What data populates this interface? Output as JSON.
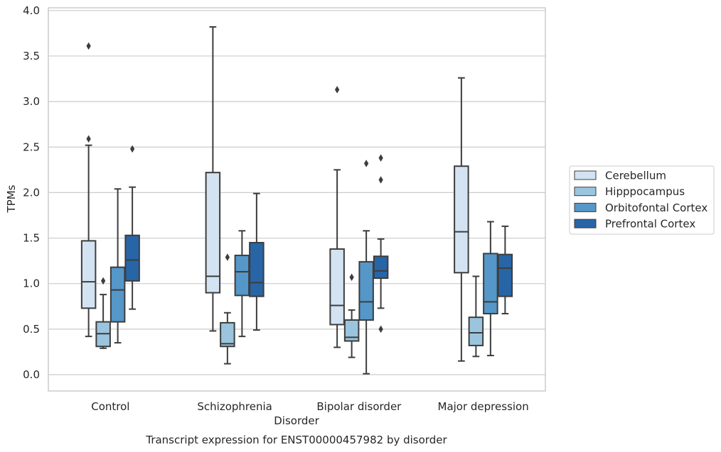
{
  "chart_data": {
    "type": "box",
    "xlabel": "Disorder",
    "ylabel": "TPMs",
    "caption": "Transcript expression for ENST00000457982 by disorder",
    "ylim": [
      -0.17,
      4.02
    ],
    "yticks": [
      "0.0",
      "0.5",
      "1.0",
      "1.5",
      "2.0",
      "2.5",
      "3.0",
      "3.5",
      "4.0"
    ],
    "grid": "horizontal",
    "legend_placement": "right",
    "categories": [
      "Control",
      "Schizophrenia",
      "Bipolar disorder",
      "Major depression"
    ],
    "series": [
      {
        "name": "Cerebellum",
        "color": "#d4e3f1",
        "boxes": [
          {
            "whislo": 0.42,
            "q1": 0.73,
            "med": 1.02,
            "q3": 1.47,
            "whishi": 2.52,
            "fliers": [
              2.59,
              3.61
            ]
          },
          {
            "whislo": 0.48,
            "q1": 0.9,
            "med": 1.08,
            "q3": 2.22,
            "whishi": 3.82,
            "fliers": []
          },
          {
            "whislo": 0.3,
            "q1": 0.55,
            "med": 0.76,
            "q3": 1.38,
            "whishi": 2.25,
            "fliers": [
              3.13
            ]
          },
          {
            "whislo": 0.15,
            "q1": 1.12,
            "med": 1.57,
            "q3": 2.29,
            "whishi": 3.26,
            "fliers": []
          }
        ]
      },
      {
        "name": "Hipppocampus",
        "color": "#9bc5de",
        "boxes": [
          {
            "whislo": 0.29,
            "q1": 0.31,
            "med": 0.45,
            "q3": 0.58,
            "whishi": 0.88,
            "fliers": [
              1.03
            ]
          },
          {
            "whislo": 0.12,
            "q1": 0.31,
            "med": 0.34,
            "q3": 0.57,
            "whishi": 0.68,
            "fliers": [
              1.29
            ]
          },
          {
            "whislo": 0.19,
            "q1": 0.37,
            "med": 0.41,
            "q3": 0.6,
            "whishi": 0.71,
            "fliers": [
              1.07
            ]
          },
          {
            "whislo": 0.2,
            "q1": 0.32,
            "med": 0.46,
            "q3": 0.63,
            "whishi": 1.08,
            "fliers": []
          }
        ]
      },
      {
        "name": "Orbitofontal Cortex",
        "color": "#5597c8",
        "boxes": [
          {
            "whislo": 0.35,
            "q1": 0.58,
            "med": 0.93,
            "q3": 1.18,
            "whishi": 2.04,
            "fliers": []
          },
          {
            "whislo": 0.42,
            "q1": 0.87,
            "med": 1.13,
            "q3": 1.31,
            "whishi": 1.58,
            "fliers": []
          },
          {
            "whislo": 0.01,
            "q1": 0.6,
            "med": 0.8,
            "q3": 1.24,
            "whishi": 1.58,
            "fliers": [
              2.32
            ]
          },
          {
            "whislo": 0.21,
            "q1": 0.67,
            "med": 0.8,
            "q3": 1.33,
            "whishi": 1.68,
            "fliers": []
          }
        ]
      },
      {
        "name": "Prefrontal Cortex",
        "color": "#2865a6",
        "boxes": [
          {
            "whislo": 0.72,
            "q1": 1.03,
            "med": 1.26,
            "q3": 1.53,
            "whishi": 2.06,
            "fliers": [
              2.48
            ]
          },
          {
            "whislo": 0.49,
            "q1": 0.86,
            "med": 1.01,
            "q3": 1.45,
            "whishi": 1.99,
            "fliers": []
          },
          {
            "whislo": 0.73,
            "q1": 1.06,
            "med": 1.14,
            "q3": 1.3,
            "whishi": 1.49,
            "fliers": [
              0.5,
              2.14,
              2.38
            ]
          },
          {
            "whislo": 0.67,
            "q1": 0.86,
            "med": 1.17,
            "q3": 1.32,
            "whishi": 1.63,
            "fliers": []
          }
        ]
      }
    ]
  }
}
